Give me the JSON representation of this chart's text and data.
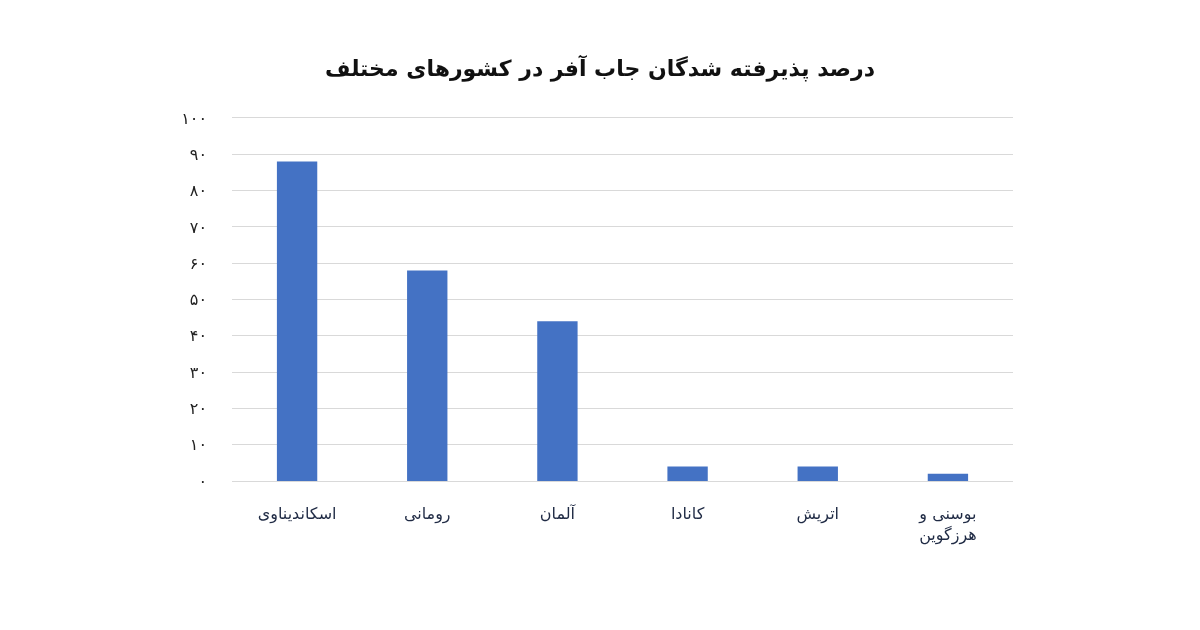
{
  "chart_data": {
    "type": "bar",
    "title": "درصد پذیرفته شدگان جاب آفر در کشورهای مختلف",
    "categories": [
      "اسکاندیناوی",
      "رومانی",
      "آلمان",
      "کانادا",
      "اتریش",
      "بوسنی و هرزگوین"
    ],
    "values": [
      88,
      58,
      44,
      4,
      4,
      2
    ],
    "color": "#4472c4",
    "ylim": [
      0,
      100
    ],
    "yticks": [
      {
        "value": 0,
        "label": "۰"
      },
      {
        "value": 10,
        "label": "۱۰"
      },
      {
        "value": 20,
        "label": "۲۰"
      },
      {
        "value": 30,
        "label": "۳۰"
      },
      {
        "value": 40,
        "label": "۴۰"
      },
      {
        "value": 50,
        "label": "۵۰"
      },
      {
        "value": 60,
        "label": "۶۰"
      },
      {
        "value": 70,
        "label": "۷۰"
      },
      {
        "value": 80,
        "label": "۸۰"
      },
      {
        "value": 90,
        "label": "۹۰"
      },
      {
        "value": 100,
        "label": "۱۰۰"
      }
    ],
    "grid": "y"
  }
}
